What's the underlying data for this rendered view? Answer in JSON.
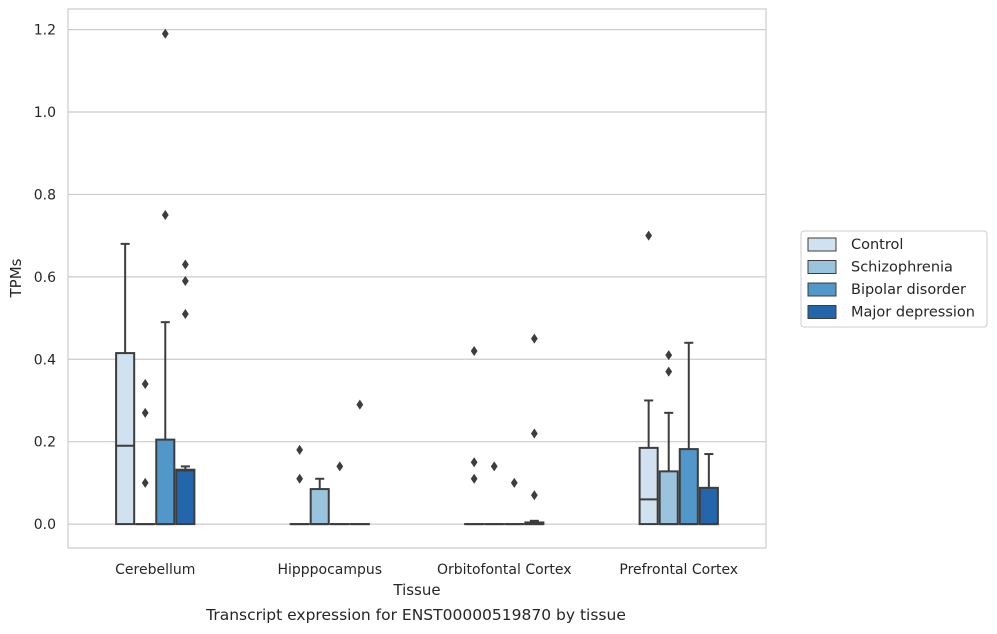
{
  "caption": "Transcript expression for ENST00000519870 by tissue",
  "chart_data": {
    "type": "box",
    "xlabel": "Tissue",
    "ylabel": "TPMs",
    "ylim": [
      -0.058,
      1.25
    ],
    "yticks": [
      0.0,
      0.2,
      0.4,
      0.6,
      0.8,
      1.0,
      1.2
    ],
    "grid": true,
    "legend_position": "right",
    "categories": [
      "Cerebellum",
      "Hipppocampus",
      "Orbitofontal Cortex",
      "Prefrontal Cortex"
    ],
    "series": [
      {
        "name": "Control",
        "color": "#d0e1f0",
        "boxes": [
          {
            "q1": 0.0,
            "median": 0.19,
            "q3": 0.415,
            "whisker_low": 0.0,
            "whisker_high": 0.68,
            "outliers": []
          },
          {
            "q1": 0.0,
            "median": 0.0,
            "q3": 0.0,
            "whisker_low": 0.0,
            "whisker_high": 0.0,
            "outliers": [
              0.18,
              0.11
            ]
          },
          {
            "q1": 0.0,
            "median": 0.0,
            "q3": 0.0,
            "whisker_low": 0.0,
            "whisker_high": 0.0,
            "outliers": [
              0.42,
              0.15,
              0.11
            ]
          },
          {
            "q1": 0.0,
            "median": 0.06,
            "q3": 0.185,
            "whisker_low": 0.0,
            "whisker_high": 0.3,
            "outliers": [
              0.7
            ]
          }
        ]
      },
      {
        "name": "Schizophrenia",
        "color": "#9ac4dd",
        "boxes": [
          {
            "q1": 0.0,
            "median": 0.0,
            "q3": 0.0,
            "whisker_low": 0.0,
            "whisker_high": 0.0,
            "outliers": [
              0.34,
              0.27,
              0.1
            ]
          },
          {
            "q1": 0.0,
            "median": 0.0,
            "q3": 0.085,
            "whisker_low": 0.0,
            "whisker_high": 0.11,
            "outliers": []
          },
          {
            "q1": 0.0,
            "median": 0.0,
            "q3": 0.0,
            "whisker_low": 0.0,
            "whisker_high": 0.0,
            "outliers": [
              0.14
            ]
          },
          {
            "q1": 0.0,
            "median": 0.0,
            "q3": 0.128,
            "whisker_low": 0.0,
            "whisker_high": 0.27,
            "outliers": [
              0.41,
              0.37
            ]
          }
        ]
      },
      {
        "name": "Bipolar disorder",
        "color": "#5197c9",
        "boxes": [
          {
            "q1": 0.0,
            "median": 0.0,
            "q3": 0.205,
            "whisker_low": 0.0,
            "whisker_high": 0.49,
            "outliers": [
              1.19,
              0.75
            ]
          },
          {
            "q1": 0.0,
            "median": 0.0,
            "q3": 0.0,
            "whisker_low": 0.0,
            "whisker_high": 0.0,
            "outliers": [
              0.14
            ]
          },
          {
            "q1": 0.0,
            "median": 0.0,
            "q3": 0.0,
            "whisker_low": 0.0,
            "whisker_high": 0.0,
            "outliers": [
              0.1
            ]
          },
          {
            "q1": 0.0,
            "median": 0.0,
            "q3": 0.182,
            "whisker_low": 0.0,
            "whisker_high": 0.44,
            "outliers": []
          }
        ]
      },
      {
        "name": "Major depression",
        "color": "#2366ac",
        "boxes": [
          {
            "q1": 0.0,
            "median": 0.13,
            "q3": 0.132,
            "whisker_low": 0.0,
            "whisker_high": 0.14,
            "outliers": [
              0.63,
              0.59,
              0.51
            ]
          },
          {
            "q1": 0.0,
            "median": 0.0,
            "q3": 0.0,
            "whisker_low": 0.0,
            "whisker_high": 0.0,
            "outliers": [
              0.29
            ]
          },
          {
            "q1": 0.0,
            "median": 0.0,
            "q3": 0.004,
            "whisker_low": 0.0,
            "whisker_high": 0.008,
            "outliers": [
              0.45,
              0.22,
              0.07
            ]
          },
          {
            "q1": 0.0,
            "median": 0.0,
            "q3": 0.088,
            "whisker_low": 0.0,
            "whisker_high": 0.17,
            "outliers": []
          }
        ]
      }
    ]
  }
}
